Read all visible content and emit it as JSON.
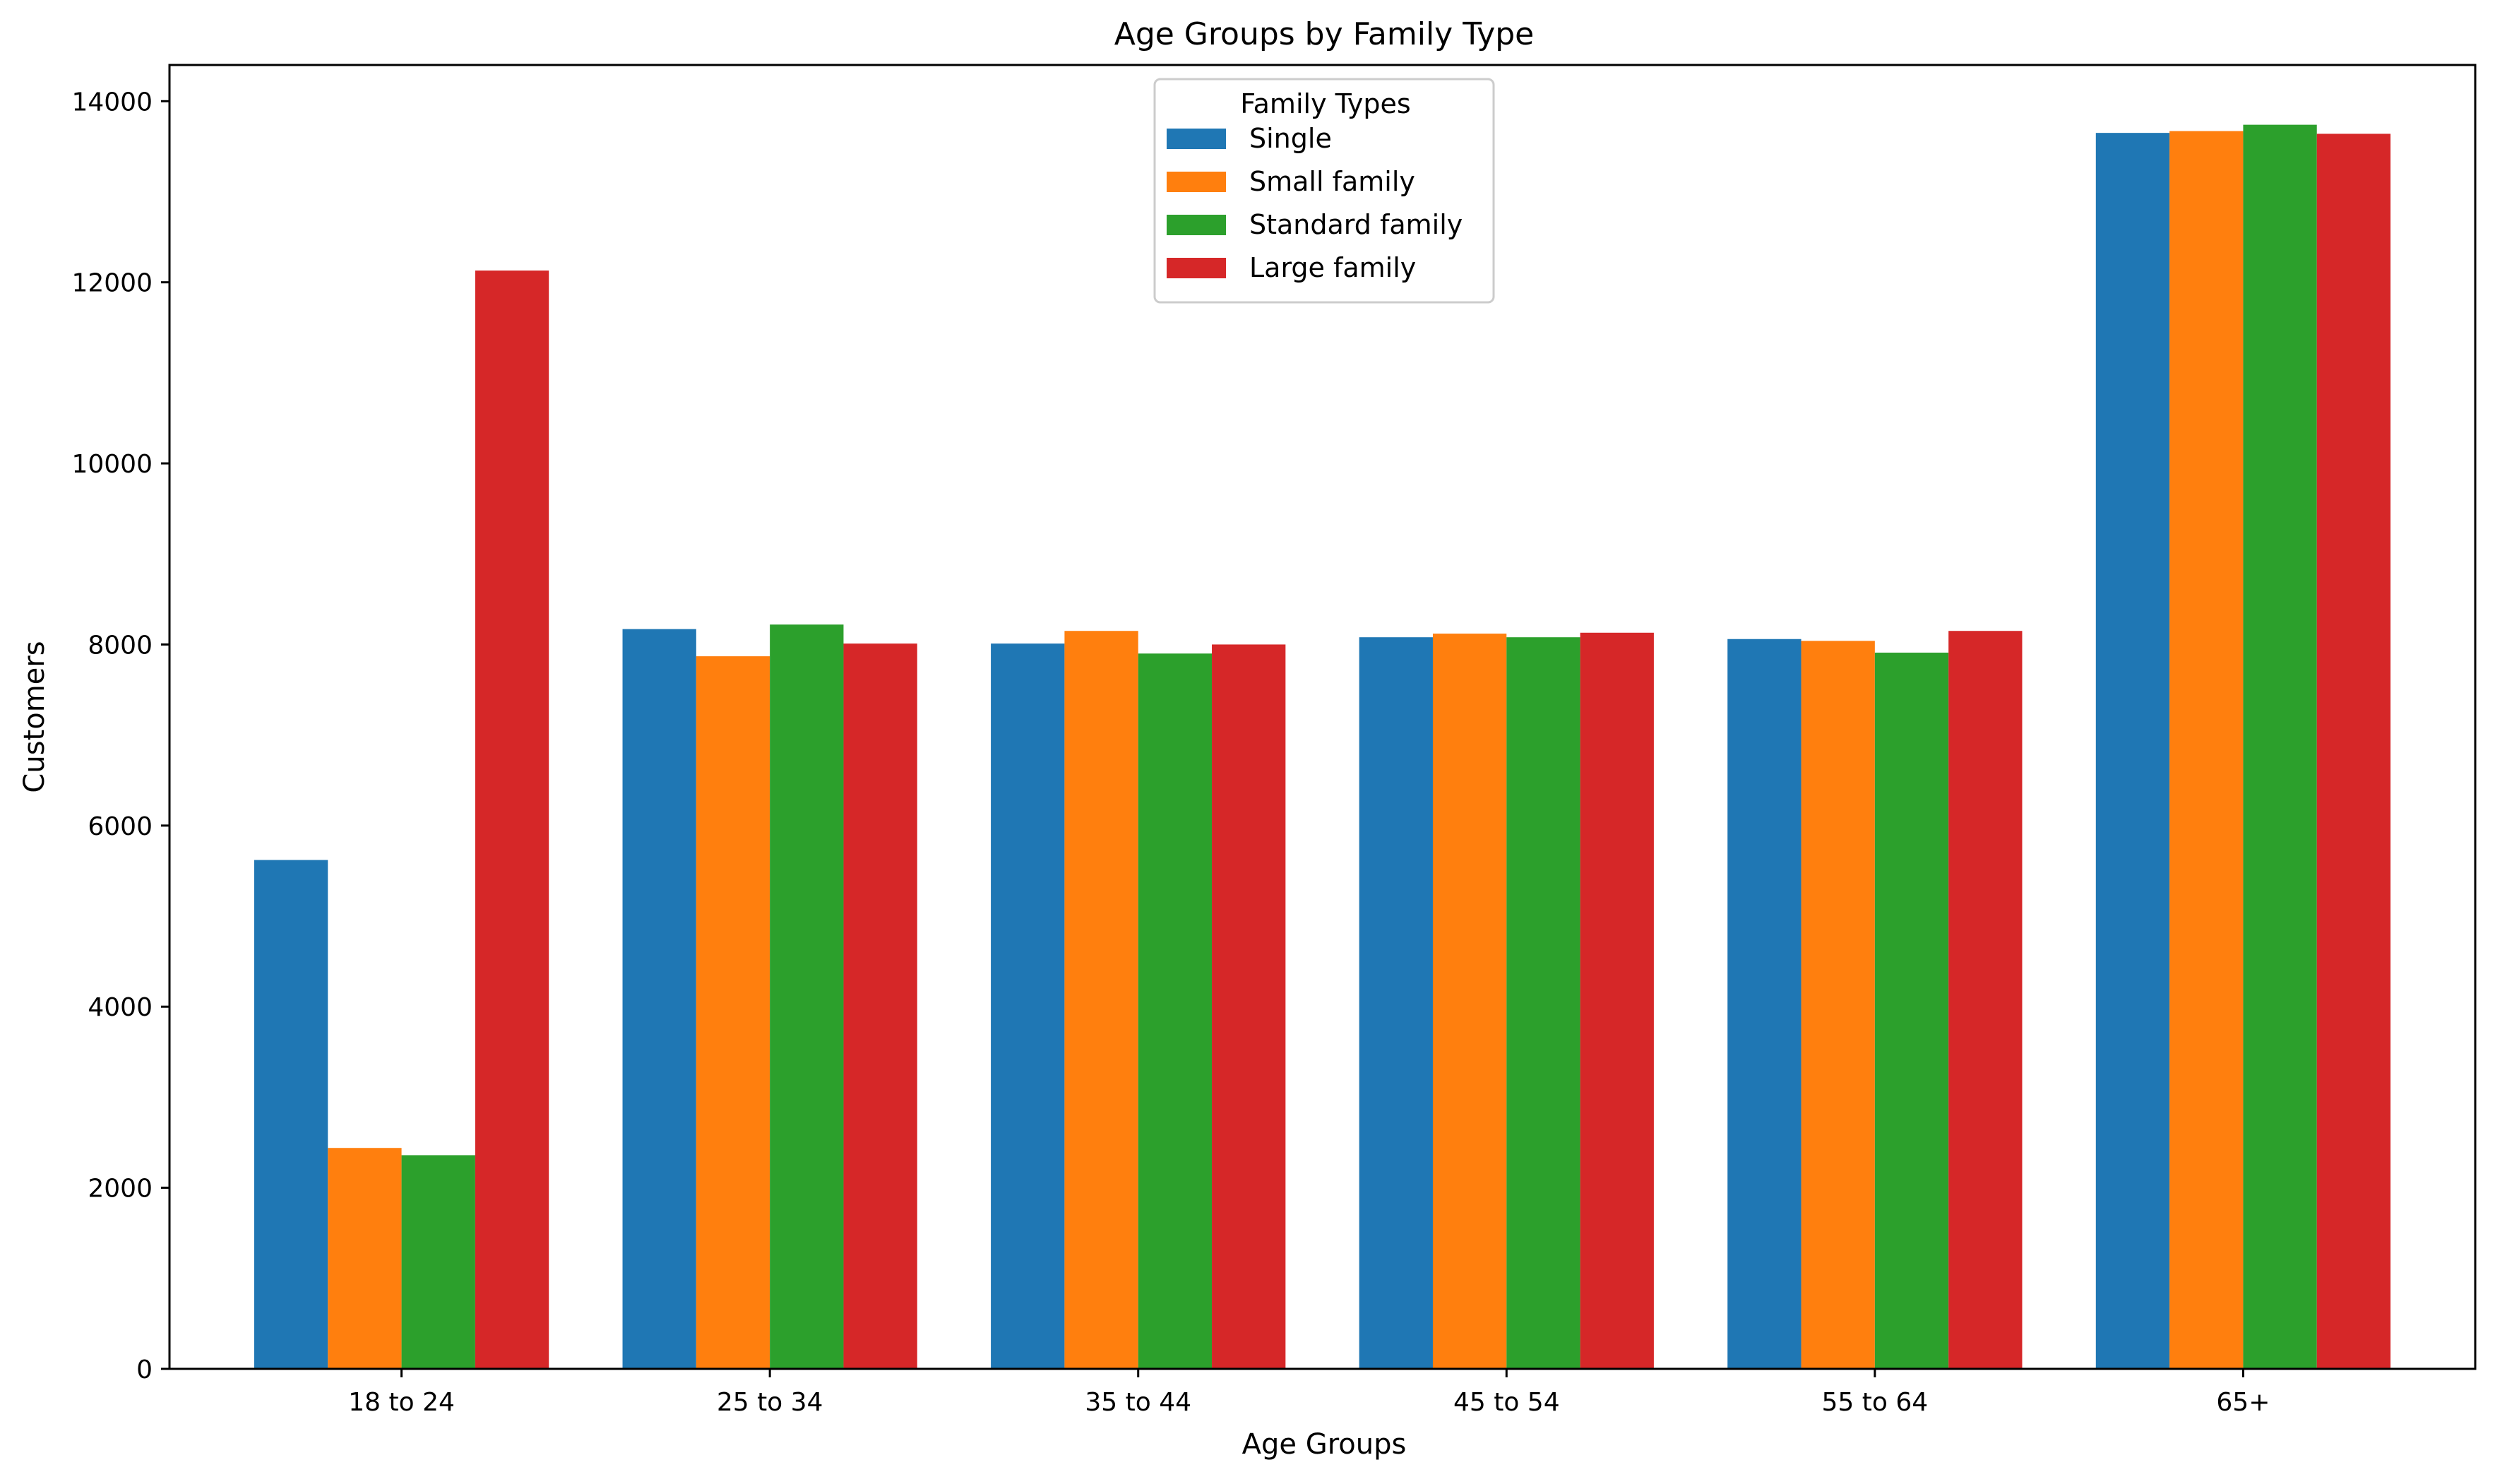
{
  "chart_data": {
    "type": "bar",
    "title": "Age Groups by Family Type",
    "xlabel": "Age Groups",
    "ylabel": "Customers",
    "categories": [
      "18 to 24",
      "25 to 34",
      "35 to 44",
      "45 to 54",
      "55 to 64",
      "65+"
    ],
    "ylim": [
      0,
      14400
    ],
    "yticks": [
      0,
      2000,
      4000,
      6000,
      8000,
      10000,
      12000,
      14000
    ],
    "grid": false,
    "legend": {
      "title": "Family Types",
      "placement": "top-center"
    },
    "series": [
      {
        "name": "Single",
        "color": "#1f77b4",
        "values": [
          5620,
          8170,
          8010,
          8080,
          8060,
          13650
        ]
      },
      {
        "name": "Small family",
        "color": "#ff7f0e",
        "values": [
          2440,
          7870,
          8150,
          8120,
          8040,
          13670
        ]
      },
      {
        "name": "Standard family",
        "color": "#2ca02c",
        "values": [
          2360,
          8220,
          7900,
          8080,
          7910,
          13740
        ]
      },
      {
        "name": "Large family",
        "color": "#d62728",
        "values": [
          12130,
          8010,
          8000,
          8130,
          8150,
          13640
        ]
      }
    ]
  }
}
